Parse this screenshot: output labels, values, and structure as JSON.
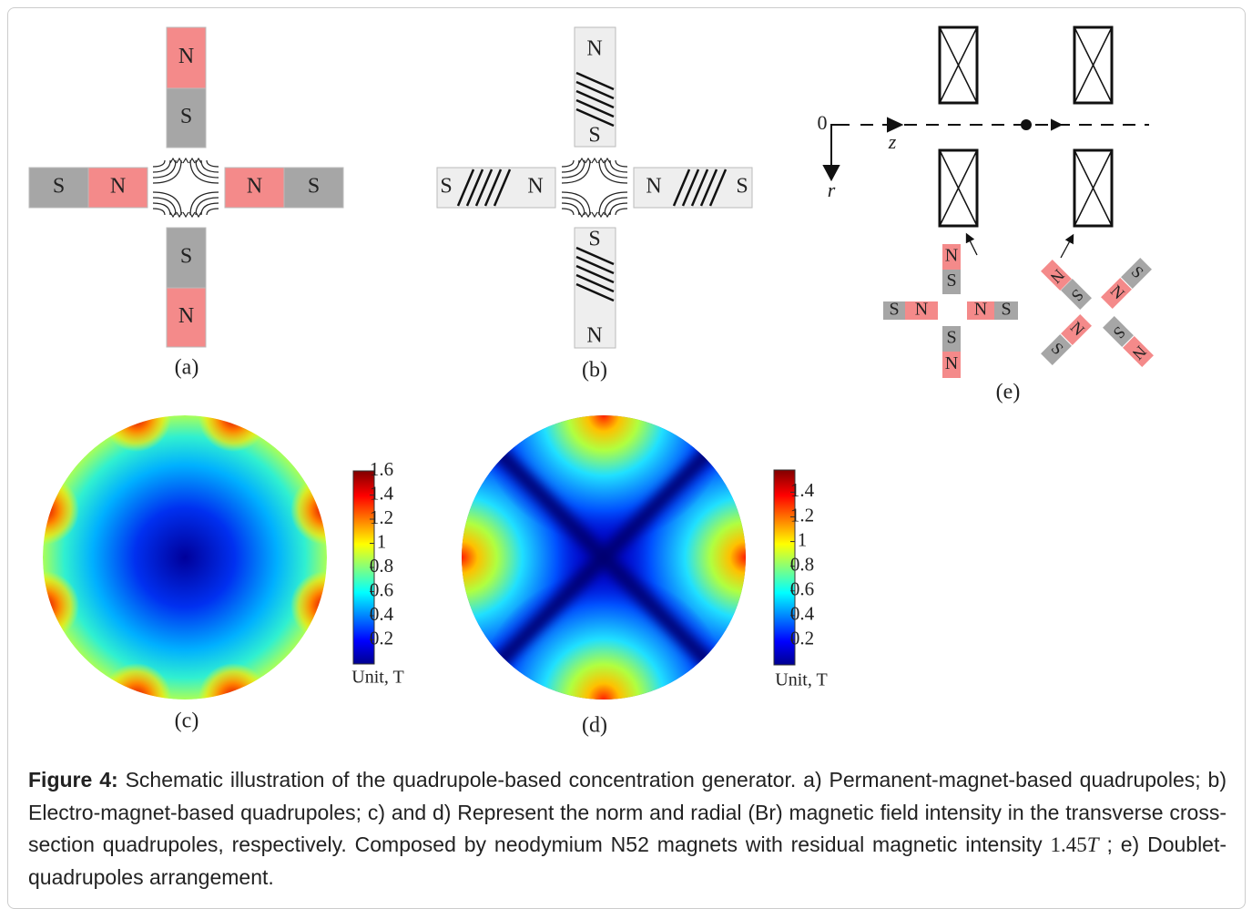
{
  "panel_a": {
    "label": "(a)",
    "poles": [
      "N",
      "S",
      "S",
      "N",
      "N",
      "S",
      "S",
      "N"
    ]
  },
  "panel_b": {
    "label": "(b)",
    "poles": [
      "N",
      "S",
      "S",
      "N",
      "N",
      "S",
      "S",
      "N"
    ]
  },
  "panel_c": {
    "label": "(c)",
    "colorbar": {
      "range": [
        0,
        1.6
      ],
      "ticks": [
        1.6,
        1.4,
        1.2,
        1,
        0.8,
        0.6,
        0.4,
        0.2
      ],
      "unit": "Unit, T"
    }
  },
  "panel_d": {
    "label": "(d)",
    "colorbar": {
      "range": [
        0,
        1.58
      ],
      "ticks": [
        1.4,
        1.2,
        1,
        0.8,
        0.6,
        0.4,
        0.2
      ],
      "unit": "Unit, T"
    }
  },
  "panel_e": {
    "label": "(e)",
    "axis_origin": "0",
    "axis_z": "z",
    "axis_r": "r",
    "poles": [
      "N",
      "S",
      "S",
      "N",
      "N",
      "S",
      "S",
      "N"
    ],
    "rotated_poles": [
      "N",
      "S",
      "S",
      "N",
      "N",
      "S",
      "S",
      "N"
    ]
  },
  "caption": {
    "label": "Figure 4:",
    "text": "Schematic illustration of the quadrupole-based concentration generator. a) Permanent-magnet-based quadrupoles; b) Electro-magnet-based quadrupoles; c) and d) Represent the norm and radial (Br) magnetic field intensity in the transverse cross-section quadrupoles, respectively. Composed by neodymium N52 magnets with residual magnetic intensity",
    "math_value": "1.45",
    "math_unit": "T",
    "text_after": "; e) Doublet-quadrupoles arrangement."
  }
}
